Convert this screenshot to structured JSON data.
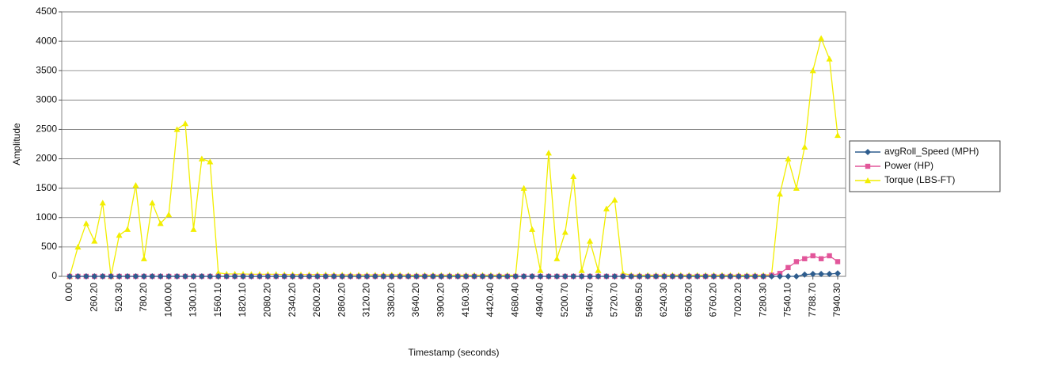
{
  "chart_data": {
    "type": "line",
    "x_label": "Timestamp (seconds)",
    "y_label": "Amplitude",
    "categories": [
      "0.00",
      null,
      null,
      "260.20",
      null,
      null,
      "520.30",
      null,
      null,
      "780.20",
      null,
      null,
      "1040.00",
      null,
      null,
      "1300.10",
      null,
      null,
      "1560.10",
      null,
      null,
      "1820.10",
      null,
      null,
      "2080.20",
      null,
      null,
      "2340.20",
      null,
      null,
      "2600.20",
      null,
      null,
      "2860.20",
      null,
      null,
      "3120.20",
      null,
      null,
      "3380.20",
      null,
      null,
      "3640.20",
      null,
      null,
      "3900.20",
      null,
      null,
      "4160.30",
      null,
      null,
      "4420.40",
      null,
      null,
      "4680.40",
      null,
      null,
      "4940.40",
      null,
      null,
      "5200.70",
      null,
      null,
      "5460.70",
      null,
      null,
      "5720.70",
      null,
      null,
      "5980.50",
      null,
      null,
      "6240.30",
      null,
      null,
      "6500.20",
      null,
      null,
      "6760.20",
      null,
      null,
      "7020.20",
      null,
      null,
      "7280.30",
      null,
      null,
      "7540.10",
      null,
      null,
      "7788.70",
      null,
      null,
      "7940.30"
    ],
    "series": [
      {
        "name": "avgRoll_Speed (MPH)",
        "color": "#2e5d8e",
        "marker": "diamond",
        "values": [
          0,
          0,
          0,
          0,
          0,
          0,
          0,
          0,
          0,
          0,
          0,
          0,
          0,
          0,
          0,
          0,
          0,
          0,
          0,
          0,
          0,
          0,
          0,
          0,
          0,
          0,
          0,
          0,
          0,
          0,
          0,
          0,
          0,
          0,
          0,
          0,
          0,
          0,
          0,
          0,
          0,
          0,
          0,
          0,
          0,
          0,
          0,
          0,
          0,
          0,
          0,
          0,
          0,
          0,
          0,
          0,
          0,
          0,
          0,
          0,
          0,
          0,
          0,
          0,
          0,
          0,
          0,
          0,
          0,
          0,
          0,
          0,
          0,
          0,
          0,
          0,
          0,
          0,
          0,
          0,
          0,
          0,
          0,
          0,
          0,
          0,
          0,
          0,
          0,
          30,
          40,
          40,
          40,
          50
        ]
      },
      {
        "name": "Power (HP)",
        "color": "#e2569a",
        "marker": "square",
        "values": [
          0,
          0,
          0,
          0,
          0,
          0,
          0,
          0,
          0,
          0,
          0,
          0,
          0,
          0,
          0,
          0,
          0,
          0,
          0,
          0,
          0,
          0,
          0,
          0,
          0,
          0,
          0,
          0,
          0,
          0,
          0,
          0,
          0,
          0,
          0,
          0,
          0,
          0,
          0,
          0,
          0,
          0,
          0,
          0,
          0,
          0,
          0,
          0,
          0,
          0,
          0,
          0,
          0,
          0,
          0,
          0,
          0,
          0,
          0,
          0,
          0,
          0,
          0,
          0,
          0,
          0,
          0,
          0,
          0,
          0,
          0,
          0,
          0,
          0,
          0,
          0,
          0,
          0,
          0,
          0,
          0,
          0,
          0,
          0,
          0,
          20,
          50,
          150,
          250,
          300,
          350,
          300,
          350,
          250
        ]
      },
      {
        "name": "Torque (LBS-FT)",
        "color": "#f2ee00",
        "marker": "triangle",
        "values": [
          0,
          500,
          900,
          600,
          1250,
          0,
          700,
          800,
          1550,
          300,
          1250,
          900,
          1050,
          2500,
          2600,
          800,
          2000,
          1950,
          60,
          40,
          40,
          40,
          35,
          35,
          35,
          35,
          30,
          30,
          30,
          30,
          30,
          30,
          25,
          25,
          25,
          25,
          25,
          25,
          25,
          25,
          25,
          20,
          20,
          20,
          20,
          20,
          20,
          20,
          20,
          20,
          20,
          20,
          20,
          20,
          20,
          1500,
          800,
          100,
          2100,
          300,
          750,
          1700,
          100,
          600,
          100,
          1150,
          1300,
          50,
          20,
          20,
          20,
          20,
          20,
          20,
          20,
          20,
          20,
          20,
          20,
          20,
          20,
          20,
          20,
          20,
          20,
          30,
          1400,
          2000,
          1500,
          2200,
          3500,
          4050,
          3700,
          2400
        ]
      }
    ],
    "ylim": [
      0,
      4500
    ],
    "yticks": [
      0,
      500,
      1000,
      1500,
      2000,
      2500,
      3000,
      3500,
      4000,
      4500
    ],
    "grid": true,
    "legend": "right"
  }
}
